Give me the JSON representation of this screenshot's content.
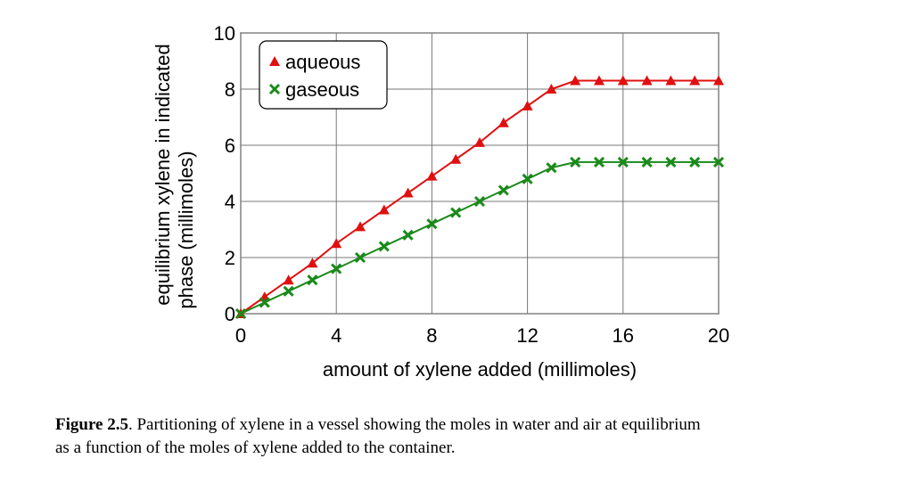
{
  "chart_data": {
    "type": "line",
    "xlabel": "amount of xylene added (millimoles)",
    "ylabel": [
      "equilibrium xylene in indicated",
      "phase (millimoles)"
    ],
    "x": [
      0,
      1,
      2,
      3,
      4,
      5,
      6,
      7,
      8,
      9,
      10,
      11,
      12,
      13,
      14,
      15,
      16,
      17,
      18,
      19,
      20
    ],
    "series": [
      {
        "name": "aqueous",
        "color": "#e01010",
        "marker": "triangle",
        "values": [
          0,
          0.6,
          1.2,
          1.8,
          2.5,
          3.1,
          3.7,
          4.3,
          4.9,
          5.5,
          6.1,
          6.8,
          7.4,
          8.0,
          8.3,
          8.3,
          8.3,
          8.3,
          8.3,
          8.3,
          8.3
        ]
      },
      {
        "name": "gaseous",
        "color": "#1a8a1a",
        "marker": "x",
        "values": [
          0,
          0.4,
          0.8,
          1.2,
          1.6,
          2.0,
          2.4,
          2.8,
          3.2,
          3.6,
          4.0,
          4.4,
          4.8,
          5.2,
          5.4,
          5.4,
          5.4,
          5.4,
          5.4,
          5.4,
          5.4
        ]
      }
    ],
    "xlim": [
      0,
      20
    ],
    "xticks": [
      0,
      4,
      8,
      12,
      16,
      20
    ],
    "ylim": [
      0,
      10
    ],
    "yticks": [
      0,
      2,
      4,
      6,
      8,
      10
    ],
    "grid": true,
    "legend": "upper left"
  },
  "caption": {
    "label": "Figure 2.5",
    "text": ". Partitioning of xylene in a vessel showing the moles in water and air at equilibrium",
    "text2": "as a function of the moles of xylene added to the container."
  }
}
